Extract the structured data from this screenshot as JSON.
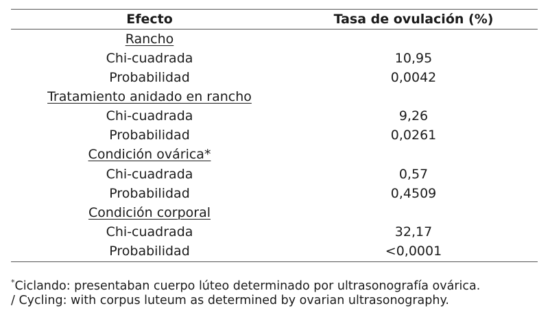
{
  "table": {
    "headers": {
      "effect": "Efecto",
      "rate": "Tasa de ovulación (%)"
    },
    "groups": [
      {
        "label": "Rancho",
        "rows": [
          {
            "stat": "Chi-cuadrada",
            "value": "10,95"
          },
          {
            "stat": "Probabilidad",
            "value": "0,0042"
          }
        ]
      },
      {
        "label": "Tratamiento anidado en rancho",
        "rows": [
          {
            "stat": "Chi-cuadrada",
            "value": "9,26"
          },
          {
            "stat": "Probabilidad",
            "value": "0,0261"
          }
        ]
      },
      {
        "label": "Condición ovárica*",
        "rows": [
          {
            "stat": "Chi-cuadrada",
            "value": "0,57"
          },
          {
            "stat": "Probabilidad",
            "value": "0,4509"
          }
        ]
      },
      {
        "label": "Condición corporal",
        "rows": [
          {
            "stat": "Chi-cuadrada",
            "value": "32,17"
          },
          {
            "stat": "Probabilidad",
            "value": "<0,0001"
          }
        ]
      }
    ]
  },
  "footnote": {
    "marker": "*",
    "line1": "Ciclando: presentaban cuerpo lúteo determinado por ultrasonografía ovárica.",
    "line2": "/ Cycling: with corpus luteum as determined by ovarian ultrasonography."
  }
}
